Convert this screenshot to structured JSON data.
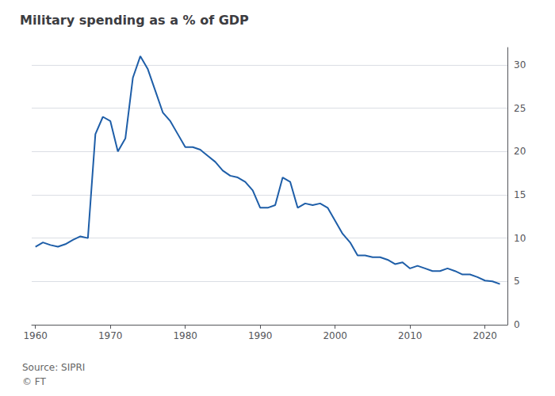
{
  "chart_data": {
    "type": "line",
    "title": "Military spending as a % of GDP",
    "annotations": [
      "Source: SIPRI",
      "© FT"
    ],
    "color": "#1e5ea8",
    "x": [
      1960,
      1961,
      1962,
      1963,
      1964,
      1965,
      1966,
      1967,
      1968,
      1969,
      1970,
      1971,
      1972,
      1973,
      1974,
      1975,
      1976,
      1977,
      1978,
      1979,
      1980,
      1981,
      1982,
      1983,
      1984,
      1985,
      1986,
      1987,
      1988,
      1989,
      1990,
      1991,
      1992,
      1993,
      1994,
      1995,
      1996,
      1997,
      1998,
      1999,
      2000,
      2001,
      2002,
      2003,
      2004,
      2005,
      2006,
      2007,
      2008,
      2009,
      2010,
      2011,
      2012,
      2013,
      2014,
      2015,
      2016,
      2017,
      2018,
      2019,
      2020,
      2021,
      2022
    ],
    "values": [
      9.0,
      9.5,
      9.2,
      9.0,
      9.3,
      9.8,
      10.2,
      10.0,
      22.0,
      24.0,
      23.5,
      20.0,
      21.5,
      28.5,
      31.0,
      29.5,
      27.0,
      24.5,
      23.5,
      22.0,
      20.5,
      20.5,
      20.2,
      19.5,
      18.8,
      17.8,
      17.2,
      17.0,
      16.5,
      15.5,
      13.5,
      13.5,
      13.8,
      17.0,
      16.5,
      13.5,
      14.0,
      13.8,
      14.0,
      13.5,
      12.0,
      10.5,
      9.5,
      8.0,
      8.0,
      7.8,
      7.8,
      7.5,
      7.0,
      7.2,
      6.5,
      6.8,
      6.5,
      6.2,
      6.2,
      6.5,
      6.2,
      5.8,
      5.8,
      5.5,
      5.1,
      5.0,
      4.7
    ],
    "xlim": [
      1959.5,
      2023
    ],
    "xticks": [
      1960,
      1970,
      1980,
      1990,
      2000,
      2010,
      2020
    ],
    "ylim": [
      0,
      32
    ],
    "yticks": [
      0,
      5,
      10,
      15,
      20,
      25,
      30
    ],
    "grid": true
  }
}
